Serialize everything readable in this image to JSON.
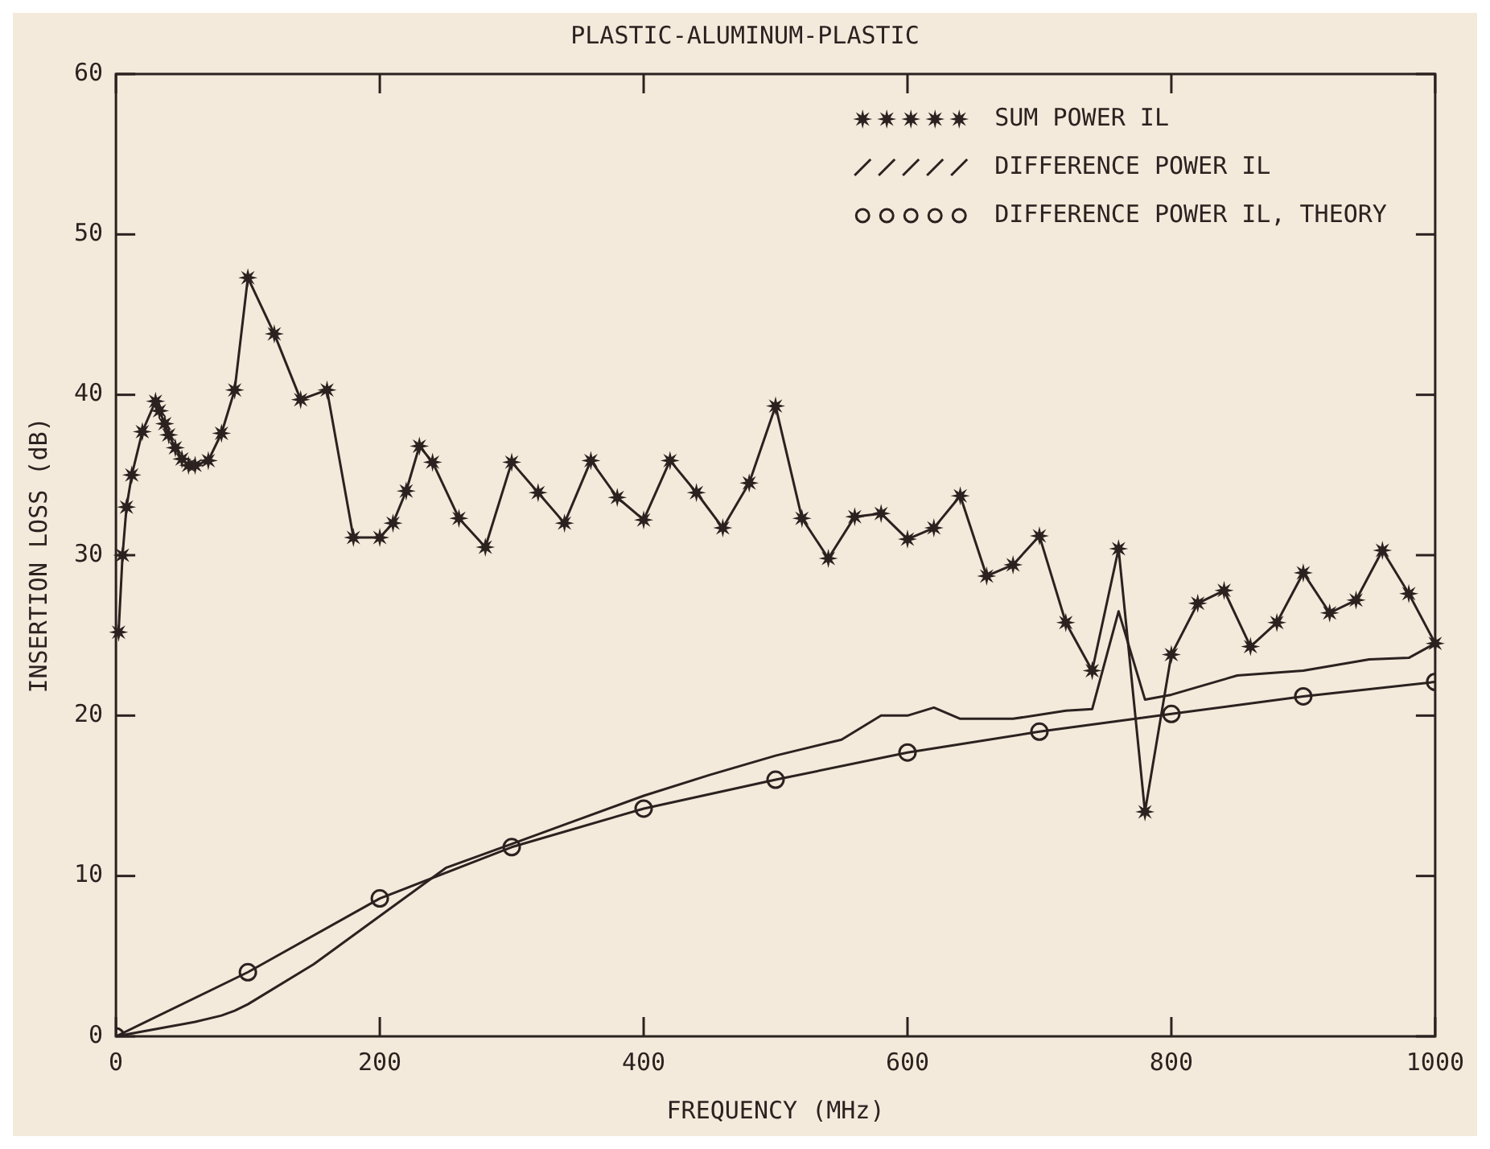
{
  "chart_data": {
    "type": "line",
    "title": "PLASTIC-ALUMINUM-PLASTIC",
    "xlabel": "FREQUENCY (MHz)",
    "ylabel": "INSERTION LOSS (dB)",
    "xlim": [
      0,
      1000
    ],
    "xticks": [
      0,
      200,
      400,
      600,
      800,
      1000
    ],
    "ylim": [
      0,
      60
    ],
    "yticks": [
      0,
      10,
      20,
      30,
      40,
      50,
      60
    ],
    "grid": false,
    "legend": "top right",
    "line_style": "solid",
    "series": [
      {
        "name": "SUM POWER IL",
        "color": "#2b2220",
        "marker": "star",
        "x": [
          2,
          5,
          8,
          12,
          20,
          30,
          33,
          37,
          40,
          45,
          50,
          55,
          60,
          70,
          80,
          90,
          100,
          120,
          140,
          160,
          180,
          200,
          210,
          220,
          230,
          240,
          260,
          280,
          300,
          320,
          340,
          360,
          380,
          400,
          420,
          440,
          460,
          480,
          500,
          520,
          540,
          560,
          580,
          600,
          620,
          640,
          660,
          680,
          700,
          720,
          740,
          760,
          780,
          800,
          820,
          840,
          860,
          880,
          900,
          920,
          940,
          960,
          980,
          1000
        ],
        "values": [
          25.2,
          30,
          33,
          35,
          37.7,
          39.6,
          39,
          38.2,
          37.5,
          36.7,
          36,
          35.6,
          35.6,
          35.9,
          37.6,
          40.3,
          47.3,
          43.8,
          39.7,
          40.3,
          31.1,
          31.1,
          32,
          34,
          36.8,
          35.8,
          32.3,
          30.5,
          35.8,
          33.9,
          32,
          35.9,
          33.6,
          32.2,
          35.9,
          33.9,
          31.7,
          34.5,
          39.3,
          32.3,
          29.8,
          32.4,
          32.6,
          31,
          31.7,
          33.7,
          28.7,
          29.4,
          31.2,
          25.8,
          22.8,
          30.4,
          14,
          23.8,
          27,
          27.8,
          24.3,
          25.8,
          28.9,
          26.4,
          27.2,
          30.3,
          27.6,
          24.5
        ]
      },
      {
        "name": "DIFFERENCE POWER IL",
        "color": "#2b2220",
        "marker": "none",
        "x": [
          0,
          20,
          40,
          60,
          80,
          90,
          100,
          150,
          200,
          250,
          300,
          350,
          400,
          450,
          500,
          550,
          580,
          600,
          620,
          640,
          680,
          720,
          740,
          760,
          780,
          800,
          850,
          900,
          950,
          980,
          1000
        ],
        "values": [
          0,
          0.3,
          0.6,
          0.9,
          1.3,
          1.6,
          2,
          4.5,
          7.5,
          10.5,
          12,
          13.5,
          15,
          16.3,
          17.5,
          18.5,
          20,
          20,
          20.5,
          19.8,
          19.8,
          20.3,
          20.4,
          26.5,
          21,
          21.3,
          22.5,
          22.8,
          23.5,
          23.6,
          24.5
        ]
      },
      {
        "name": "DIFFERENCE POWER IL, THEORY",
        "color": "#2b2220",
        "marker": "circle",
        "x": [
          0,
          100,
          200,
          300,
          400,
          500,
          600,
          700,
          800,
          900,
          1000
        ],
        "values": [
          0,
          4,
          8.6,
          11.8,
          14.2,
          16,
          17.7,
          19,
          20.1,
          21.2,
          22.1
        ]
      }
    ]
  }
}
